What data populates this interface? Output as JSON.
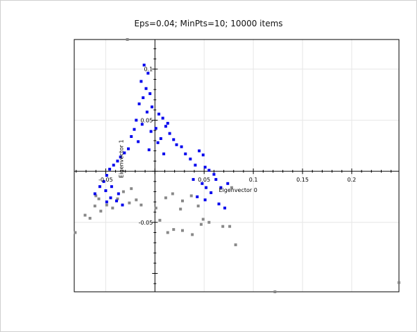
{
  "title": "Eps=0.04; MinPts=10; 10000 items",
  "colors": {
    "cluster": "#0000ee",
    "noise": "#888888",
    "axis": "#000000",
    "grid": "#e6e6e6",
    "frame": "#000000"
  },
  "chart_data": {
    "type": "scatter",
    "title": "Eps=0.04; MinPts=10; 10000 items",
    "xlabel": "Eigenvector 0",
    "ylabel": "Eigenvector 1",
    "xlim": [
      -0.082,
      0.248
    ],
    "ylim": [
      -0.118,
      0.129
    ],
    "xticks": [
      {
        "value": -0.05,
        "label": "-0.05"
      },
      {
        "value": 0.05,
        "label": "0.05"
      },
      {
        "value": 0.1,
        "label": "0.1"
      },
      {
        "value": 0.15,
        "label": "0.15"
      },
      {
        "value": 0.2,
        "label": "0.2"
      }
    ],
    "yticks": [
      {
        "value": 0.1,
        "label": "0.1"
      },
      {
        "value": 0.05,
        "label": "0.05"
      },
      {
        "value": -0.05,
        "label": "-0.05"
      }
    ],
    "grid": true,
    "series": [
      {
        "color": "#0000ee",
        "points": [
          [
            -0.011,
            0.104
          ],
          [
            -0.007,
            0.096
          ],
          [
            -0.014,
            0.088
          ],
          [
            -0.009,
            0.081
          ],
          [
            -0.005,
            0.076
          ],
          [
            -0.012,
            0.072
          ],
          [
            -0.016,
            0.066
          ],
          [
            -0.003,
            0.063
          ],
          [
            -0.008,
            0.058
          ],
          [
            0.004,
            0.056
          ],
          [
            0.008,
            0.052
          ],
          [
            -0.019,
            0.05
          ],
          [
            -0.013,
            0.046
          ],
          [
            0.011,
            0.044
          ],
          [
            0.013,
            0.047
          ],
          [
            -0.021,
            0.041
          ],
          [
            -0.004,
            0.039
          ],
          [
            0.015,
            0.037
          ],
          [
            -0.024,
            0.034
          ],
          [
            0.006,
            0.032
          ],
          [
            0.019,
            0.031
          ],
          [
            -0.017,
            0.029
          ],
          [
            0.022,
            0.026
          ],
          [
            0.027,
            0.024
          ],
          [
            -0.027,
            0.022
          ],
          [
            -0.031,
            0.018
          ],
          [
            0.031,
            0.017
          ],
          [
            -0.035,
            0.014
          ],
          [
            0.036,
            0.012
          ],
          [
            0.045,
            0.02
          ],
          [
            0.049,
            0.016
          ],
          [
            -0.038,
            0.01
          ],
          [
            0.041,
            0.006
          ],
          [
            -0.042,
            0.006
          ],
          [
            0.051,
            0.004
          ],
          [
            -0.046,
            0.002
          ],
          [
            0.055,
            0.001
          ],
          [
            0.06,
            -0.003
          ],
          [
            -0.049,
            -0.004
          ],
          [
            0.062,
            -0.008
          ],
          [
            -0.052,
            -0.01
          ],
          [
            0.048,
            -0.012
          ],
          [
            -0.044,
            -0.015
          ],
          [
            0.052,
            -0.016
          ],
          [
            -0.05,
            -0.019
          ],
          [
            0.057,
            -0.021
          ],
          [
            -0.037,
            -0.022
          ],
          [
            0.043,
            -0.025
          ],
          [
            -0.045,
            -0.026
          ],
          [
            0.051,
            -0.028
          ],
          [
            -0.039,
            -0.029
          ],
          [
            0.065,
            -0.032
          ],
          [
            -0.033,
            -0.033
          ],
          [
            0.071,
            -0.036
          ],
          [
            0.067,
            -0.016
          ],
          [
            0.074,
            -0.012
          ],
          [
            0.039,
            -0.008
          ],
          [
            -0.056,
            -0.015
          ],
          [
            -0.061,
            -0.022
          ],
          [
            -0.049,
            -0.03
          ],
          [
            0.001,
            0.042
          ],
          [
            0.003,
            0.028
          ],
          [
            -0.006,
            0.021
          ],
          [
            0.009,
            0.017
          ]
        ]
      },
      {
        "color": "#888888",
        "points": [
          [
            -0.06,
            -0.024
          ],
          [
            -0.057,
            -0.027
          ],
          [
            -0.061,
            -0.034
          ],
          [
            -0.055,
            -0.039
          ],
          [
            -0.049,
            -0.033
          ],
          [
            -0.043,
            -0.036
          ],
          [
            -0.038,
            -0.027
          ],
          [
            -0.071,
            -0.043
          ],
          [
            -0.066,
            -0.046
          ],
          [
            -0.081,
            -0.06
          ],
          [
            -0.032,
            -0.02
          ],
          [
            -0.026,
            -0.031
          ],
          [
            -0.019,
            -0.028
          ],
          [
            -0.014,
            -0.033
          ],
          [
            0.001,
            -0.036
          ],
          [
            0.005,
            -0.048
          ],
          [
            0.011,
            -0.026
          ],
          [
            0.018,
            -0.022
          ],
          [
            0.028,
            -0.029
          ],
          [
            0.026,
            -0.037
          ],
          [
            0.037,
            -0.024
          ],
          [
            0.044,
            -0.034
          ],
          [
            0.049,
            -0.047
          ],
          [
            0.047,
            -0.052
          ],
          [
            0.055,
            -0.05
          ],
          [
            0.069,
            -0.054
          ],
          [
            0.076,
            -0.054
          ],
          [
            0.082,
            -0.072
          ],
          [
            0.038,
            -0.062
          ],
          [
            0.028,
            -0.058
          ],
          [
            0.019,
            -0.057
          ],
          [
            0.013,
            -0.06
          ],
          [
            -0.024,
            -0.017
          ],
          [
            0.078,
            -0.016
          ],
          [
            0.122,
            -0.118
          ],
          [
            0.248,
            -0.109
          ],
          [
            -0.028,
            0.129
          ]
        ]
      }
    ]
  }
}
